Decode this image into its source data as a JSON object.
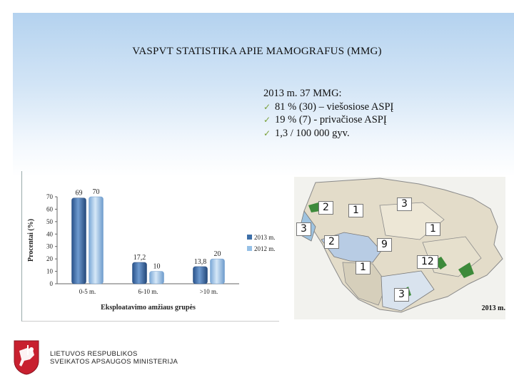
{
  "slide": {
    "title": "VASPVT STATISTIKA APIE MAMOGRAFUS (MMG)",
    "info_heading": "2013 m. 37 MMG:",
    "bullets": [
      "81 % (30) – viešosiose ASPĮ",
      "19 % (7) - privačiose ASPĮ",
      "1,3 / 100 000 gyv."
    ],
    "ministry_line1": "LIETUVOS RESPUBLIKOS",
    "ministry_line2": "SVEIKATOS APSAUGOS MINISTERIJA"
  },
  "colors": {
    "series_2013": "#3d6fa8",
    "series_2012": "#96c0e6",
    "map_base": "#e3dcc9",
    "map_highlight": "#b8cce4",
    "map_water": "#9ec3e0"
  },
  "chart_data": {
    "type": "bar",
    "categories": [
      "0-5 m.",
      "6-10 m.",
      ">10 m."
    ],
    "series": [
      {
        "name": "2013 m.",
        "values": [
          69,
          17.2,
          13.8
        ]
      },
      {
        "name": "2012 m.",
        "values": [
          70,
          10,
          20
        ]
      }
    ],
    "data_labels": [
      [
        "69",
        "17,2",
        "13,8"
      ],
      [
        "70",
        "10",
        "20"
      ]
    ],
    "xlabel": "Eksploatavimo amžiaus grupės",
    "ylabel": "Procentai (%)",
    "ylim": [
      0,
      70
    ],
    "yticks": [
      "0",
      "10",
      "20",
      "30",
      "40",
      "50",
      "60",
      "70"
    ],
    "legend_position": "right",
    "grid": false
  },
  "map": {
    "labels": [
      "2",
      "1",
      "3",
      "3",
      "1",
      "2",
      "9",
      "12",
      "1",
      "3"
    ],
    "year_label": "2013 m."
  }
}
